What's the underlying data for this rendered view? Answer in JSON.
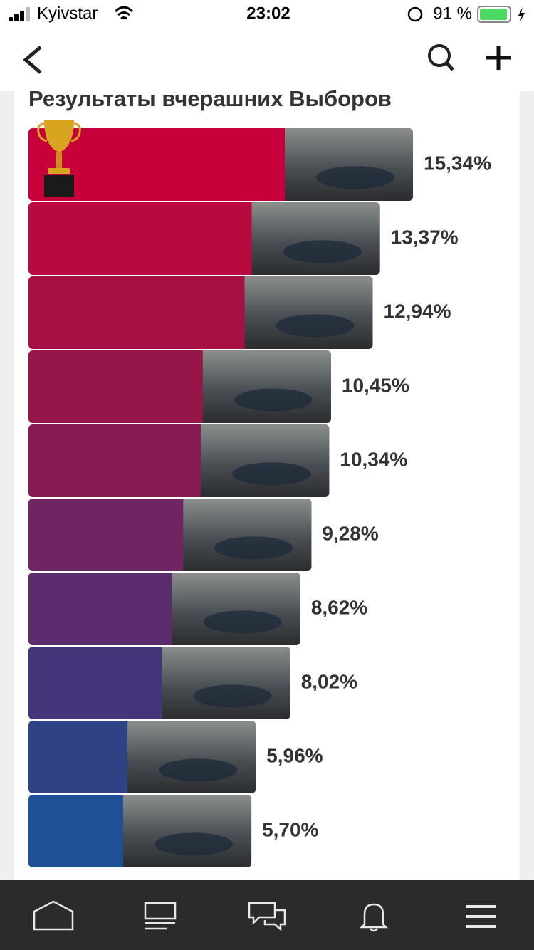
{
  "status_bar": {
    "carrier": "Kyivstar",
    "time": "23:02",
    "battery": "91 %"
  },
  "chart_data": {
    "type": "bar",
    "title": "Результаты вчерашних Выборов",
    "categories": [
      null,
      null,
      null,
      null,
      null,
      null,
      null,
      null,
      null,
      null
    ],
    "values": [
      15.34,
      13.37,
      12.94,
      10.45,
      10.34,
      9.28,
      8.62,
      8.02,
      5.96,
      5.7
    ],
    "value_labels": [
      "15,34%",
      "13,37%",
      "12,94%",
      "10,45%",
      "10,34%",
      "9,28%",
      "8,62%",
      "8,02%",
      "5,96%",
      "5,70%"
    ],
    "colors": [
      "#c8003a",
      "#b80a3e",
      "#a80f44",
      "#96164a",
      "#861b54",
      "#6f2562",
      "#5a2c6e",
      "#433578",
      "#2f4284",
      "#1f4f95"
    ],
    "xlim": [
      -7.6,
      15.34
    ]
  }
}
